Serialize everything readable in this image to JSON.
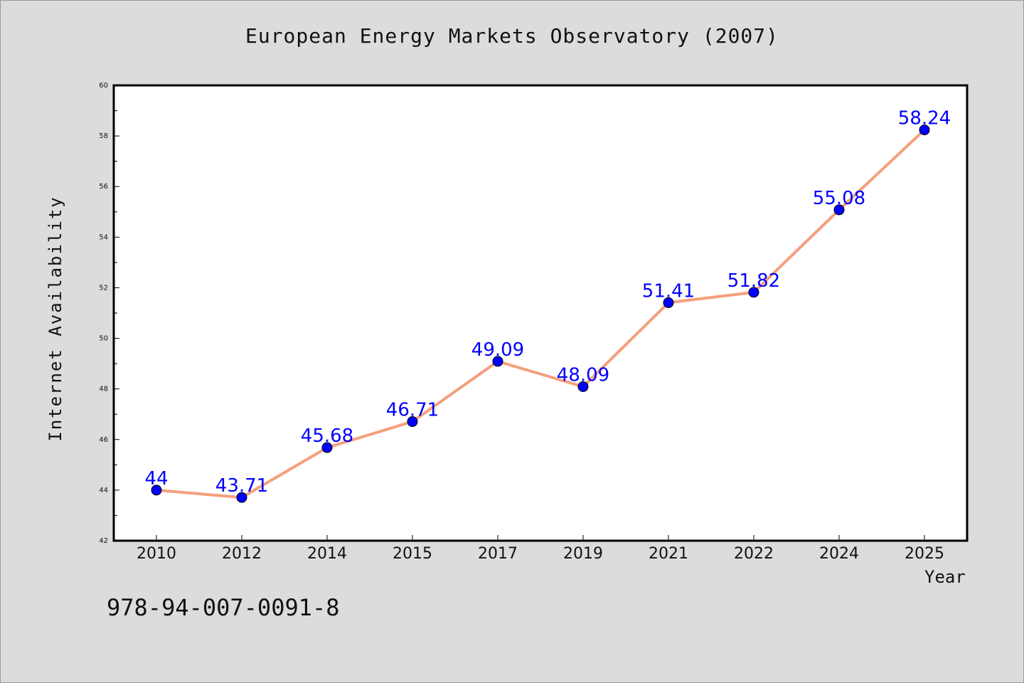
{
  "chart_data": {
    "type": "line",
    "title": "European Energy Markets Observatory (2007)",
    "xlabel": "Year",
    "ylabel": "Internet Availability",
    "categories": [
      "2010",
      "2012",
      "2014",
      "2015",
      "2017",
      "2019",
      "2021",
      "2022",
      "2024",
      "2025"
    ],
    "series": [
      {
        "values": [
          44,
          43.71,
          45.68,
          46.71,
          49.09,
          48.09,
          51.41,
          51.82,
          55.08,
          58.24
        ],
        "labels": [
          "44",
          "43.71",
          "45.68",
          "46.71",
          "49.09",
          "48.09",
          "51.41",
          "51.82",
          "55.08",
          "58.24"
        ],
        "line_color": "#f4a07e",
        "marker_color": "#0000ff",
        "label_color": "#0000ff"
      }
    ],
    "ylim": [
      42,
      60
    ],
    "yticks": [
      "42",
      "44",
      "46",
      "48",
      "50",
      "52",
      "54",
      "56",
      "58",
      "60"
    ],
    "grid": false,
    "legend": "none"
  },
  "footer_text": "978-94-007-0091-8"
}
